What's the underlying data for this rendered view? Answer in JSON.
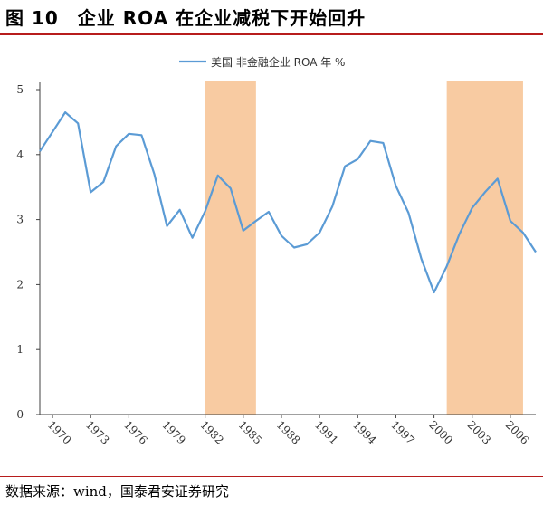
{
  "title": "图 10　企业 ROA 在企业减税下开始回升",
  "source": "数据来源：wind，国泰君安证券研究",
  "colors": {
    "line": "#5b9bd5",
    "shade": "#f8cba2",
    "axis": "#404040",
    "rule": "#b71c1c"
  },
  "chart_data": {
    "type": "line",
    "title": "",
    "xlabel": "",
    "ylabel": "",
    "x_ticks": [
      "1970",
      "1973",
      "1976",
      "1979",
      "1982",
      "1985",
      "1988",
      "1991",
      "1994",
      "1997",
      "2000",
      "2003",
      "2006"
    ],
    "y_ticks": [
      "0",
      "1",
      "2",
      "3",
      "4",
      "5"
    ],
    "ylim": [
      0,
      5
    ],
    "xlim": [
      1969,
      2008
    ],
    "legend": {
      "position": "top-center",
      "entries": [
        "美国 非金融企业 ROA 年 %"
      ]
    },
    "shaded_periods": [
      [
        1982,
        1986
      ],
      [
        2001,
        2007
      ]
    ],
    "series": [
      {
        "name": "美国 非金融企业 ROA 年 %",
        "x": [
          1969,
          1970,
          1971,
          1972,
          1973,
          1974,
          1975,
          1976,
          1977,
          1978,
          1979,
          1980,
          1981,
          1982,
          1983,
          1984,
          1985,
          1986,
          1987,
          1988,
          1989,
          1990,
          1991,
          1992,
          1993,
          1994,
          1995,
          1996,
          1997,
          1998,
          1999,
          2000,
          2001,
          2002,
          2003,
          2004,
          2005,
          2006,
          2007,
          2008
        ],
        "values": [
          4.05,
          4.35,
          4.65,
          4.48,
          3.42,
          3.58,
          4.13,
          4.32,
          4.3,
          3.7,
          2.9,
          3.15,
          2.72,
          3.13,
          3.68,
          3.48,
          2.83,
          2.98,
          3.12,
          2.75,
          2.57,
          2.62,
          2.8,
          3.2,
          3.82,
          3.93,
          4.21,
          4.18,
          3.52,
          3.1,
          2.4,
          1.88,
          2.28,
          2.78,
          3.18,
          3.42,
          3.63,
          2.98,
          2.8,
          2.5
        ]
      }
    ]
  }
}
